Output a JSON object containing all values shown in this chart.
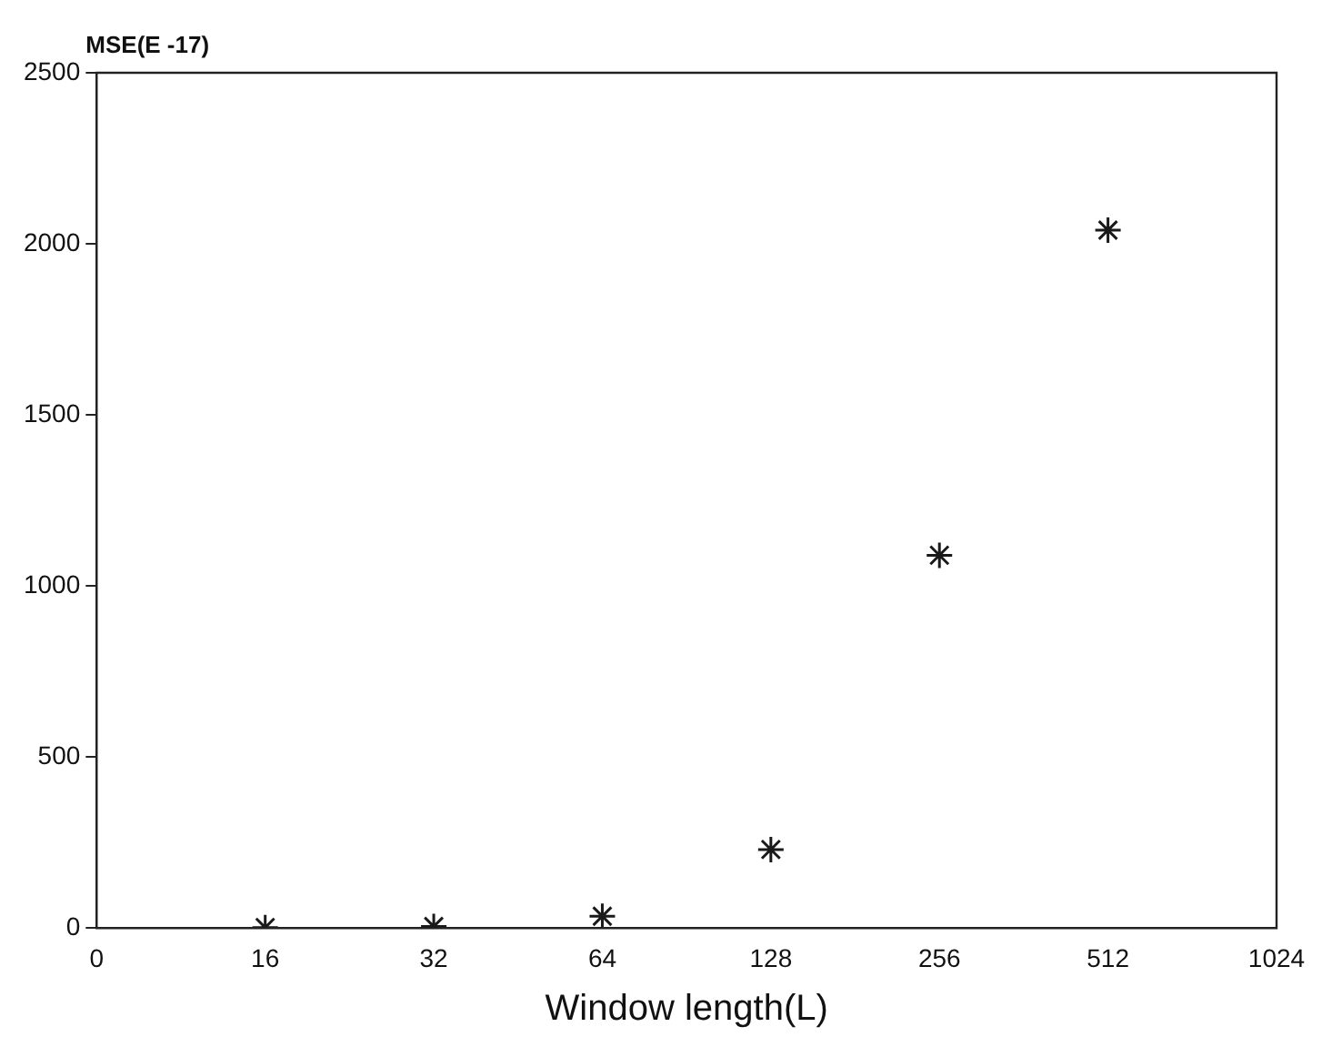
{
  "chart_data": {
    "type": "scatter",
    "ylabel": "MSE(E -17)",
    "xlabel": "Window length(L)",
    "categories": [
      "0",
      "16",
      "32",
      "64",
      "128",
      "256",
      "512",
      "1024"
    ],
    "series": [
      {
        "color": "#1a1a1a",
        "values": [
          null,
          2,
          5,
          35,
          230,
          1090,
          2040,
          null
        ]
      }
    ],
    "ylim": [
      0,
      2500
    ],
    "yticks": [
      0,
      500,
      1000,
      1500,
      2000,
      2500
    ],
    "marker": "cross",
    "grid": false,
    "legend": false
  }
}
